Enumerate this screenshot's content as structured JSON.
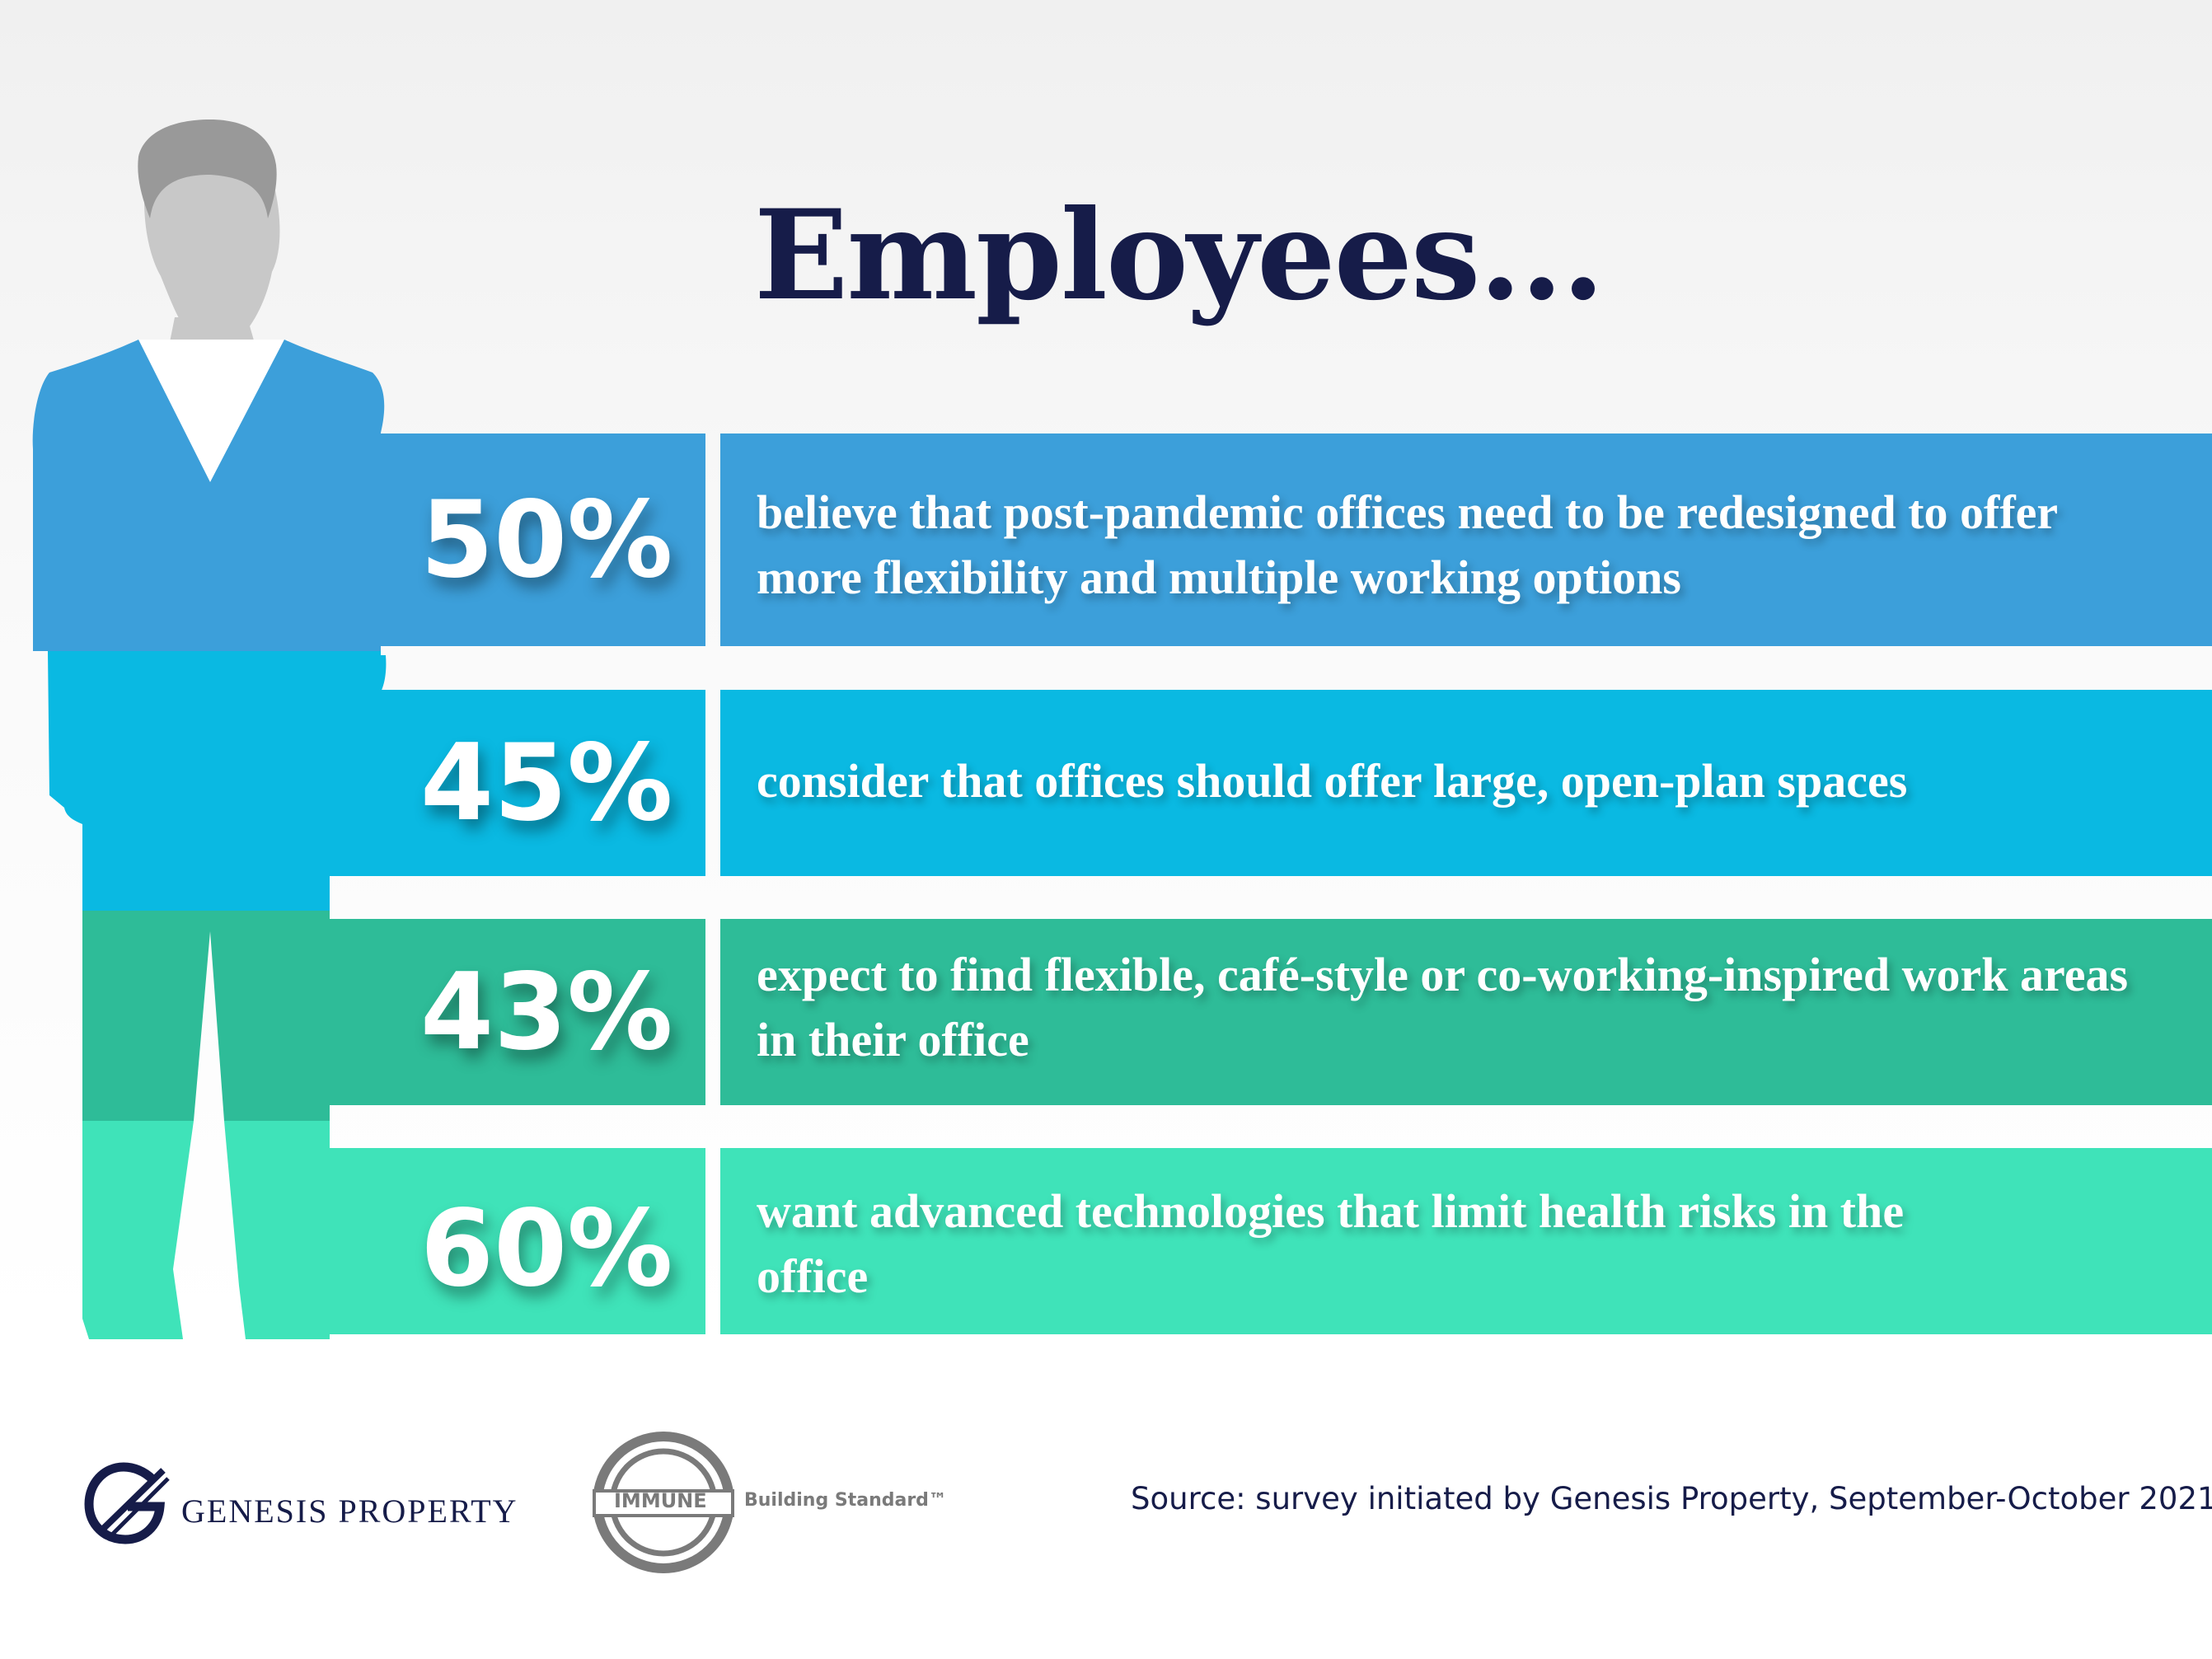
{
  "title": "Employees...",
  "colors": {
    "title": "#161c49",
    "row_1": "#3c9fda",
    "row_2": "#0ab9e2",
    "row_3": "#2ebc98",
    "row_4": "#3fe3b9",
    "head": "#c8c8c8"
  },
  "rows": [
    {
      "percent": "50%",
      "text": "believe that post-pandemic offices need to be redesigned to offer more flexibility and multiple working options"
    },
    {
      "percent": "45%",
      "text": "consider that offices should offer large, open-plan spaces"
    },
    {
      "percent": "43%",
      "text": "expect to find flexible, café-style or co-working-inspired work areas in their office"
    },
    {
      "percent": "60%",
      "text": "want advanced technologies that limit health risks in the office"
    }
  ],
  "footer": {
    "genesis_name": "GENESIS PROPERTY",
    "immune_label": "IMMUNE",
    "immune_standard": "Building Standard™",
    "source": "Source: survey initiated by Genesis Property, September-October 2021"
  }
}
